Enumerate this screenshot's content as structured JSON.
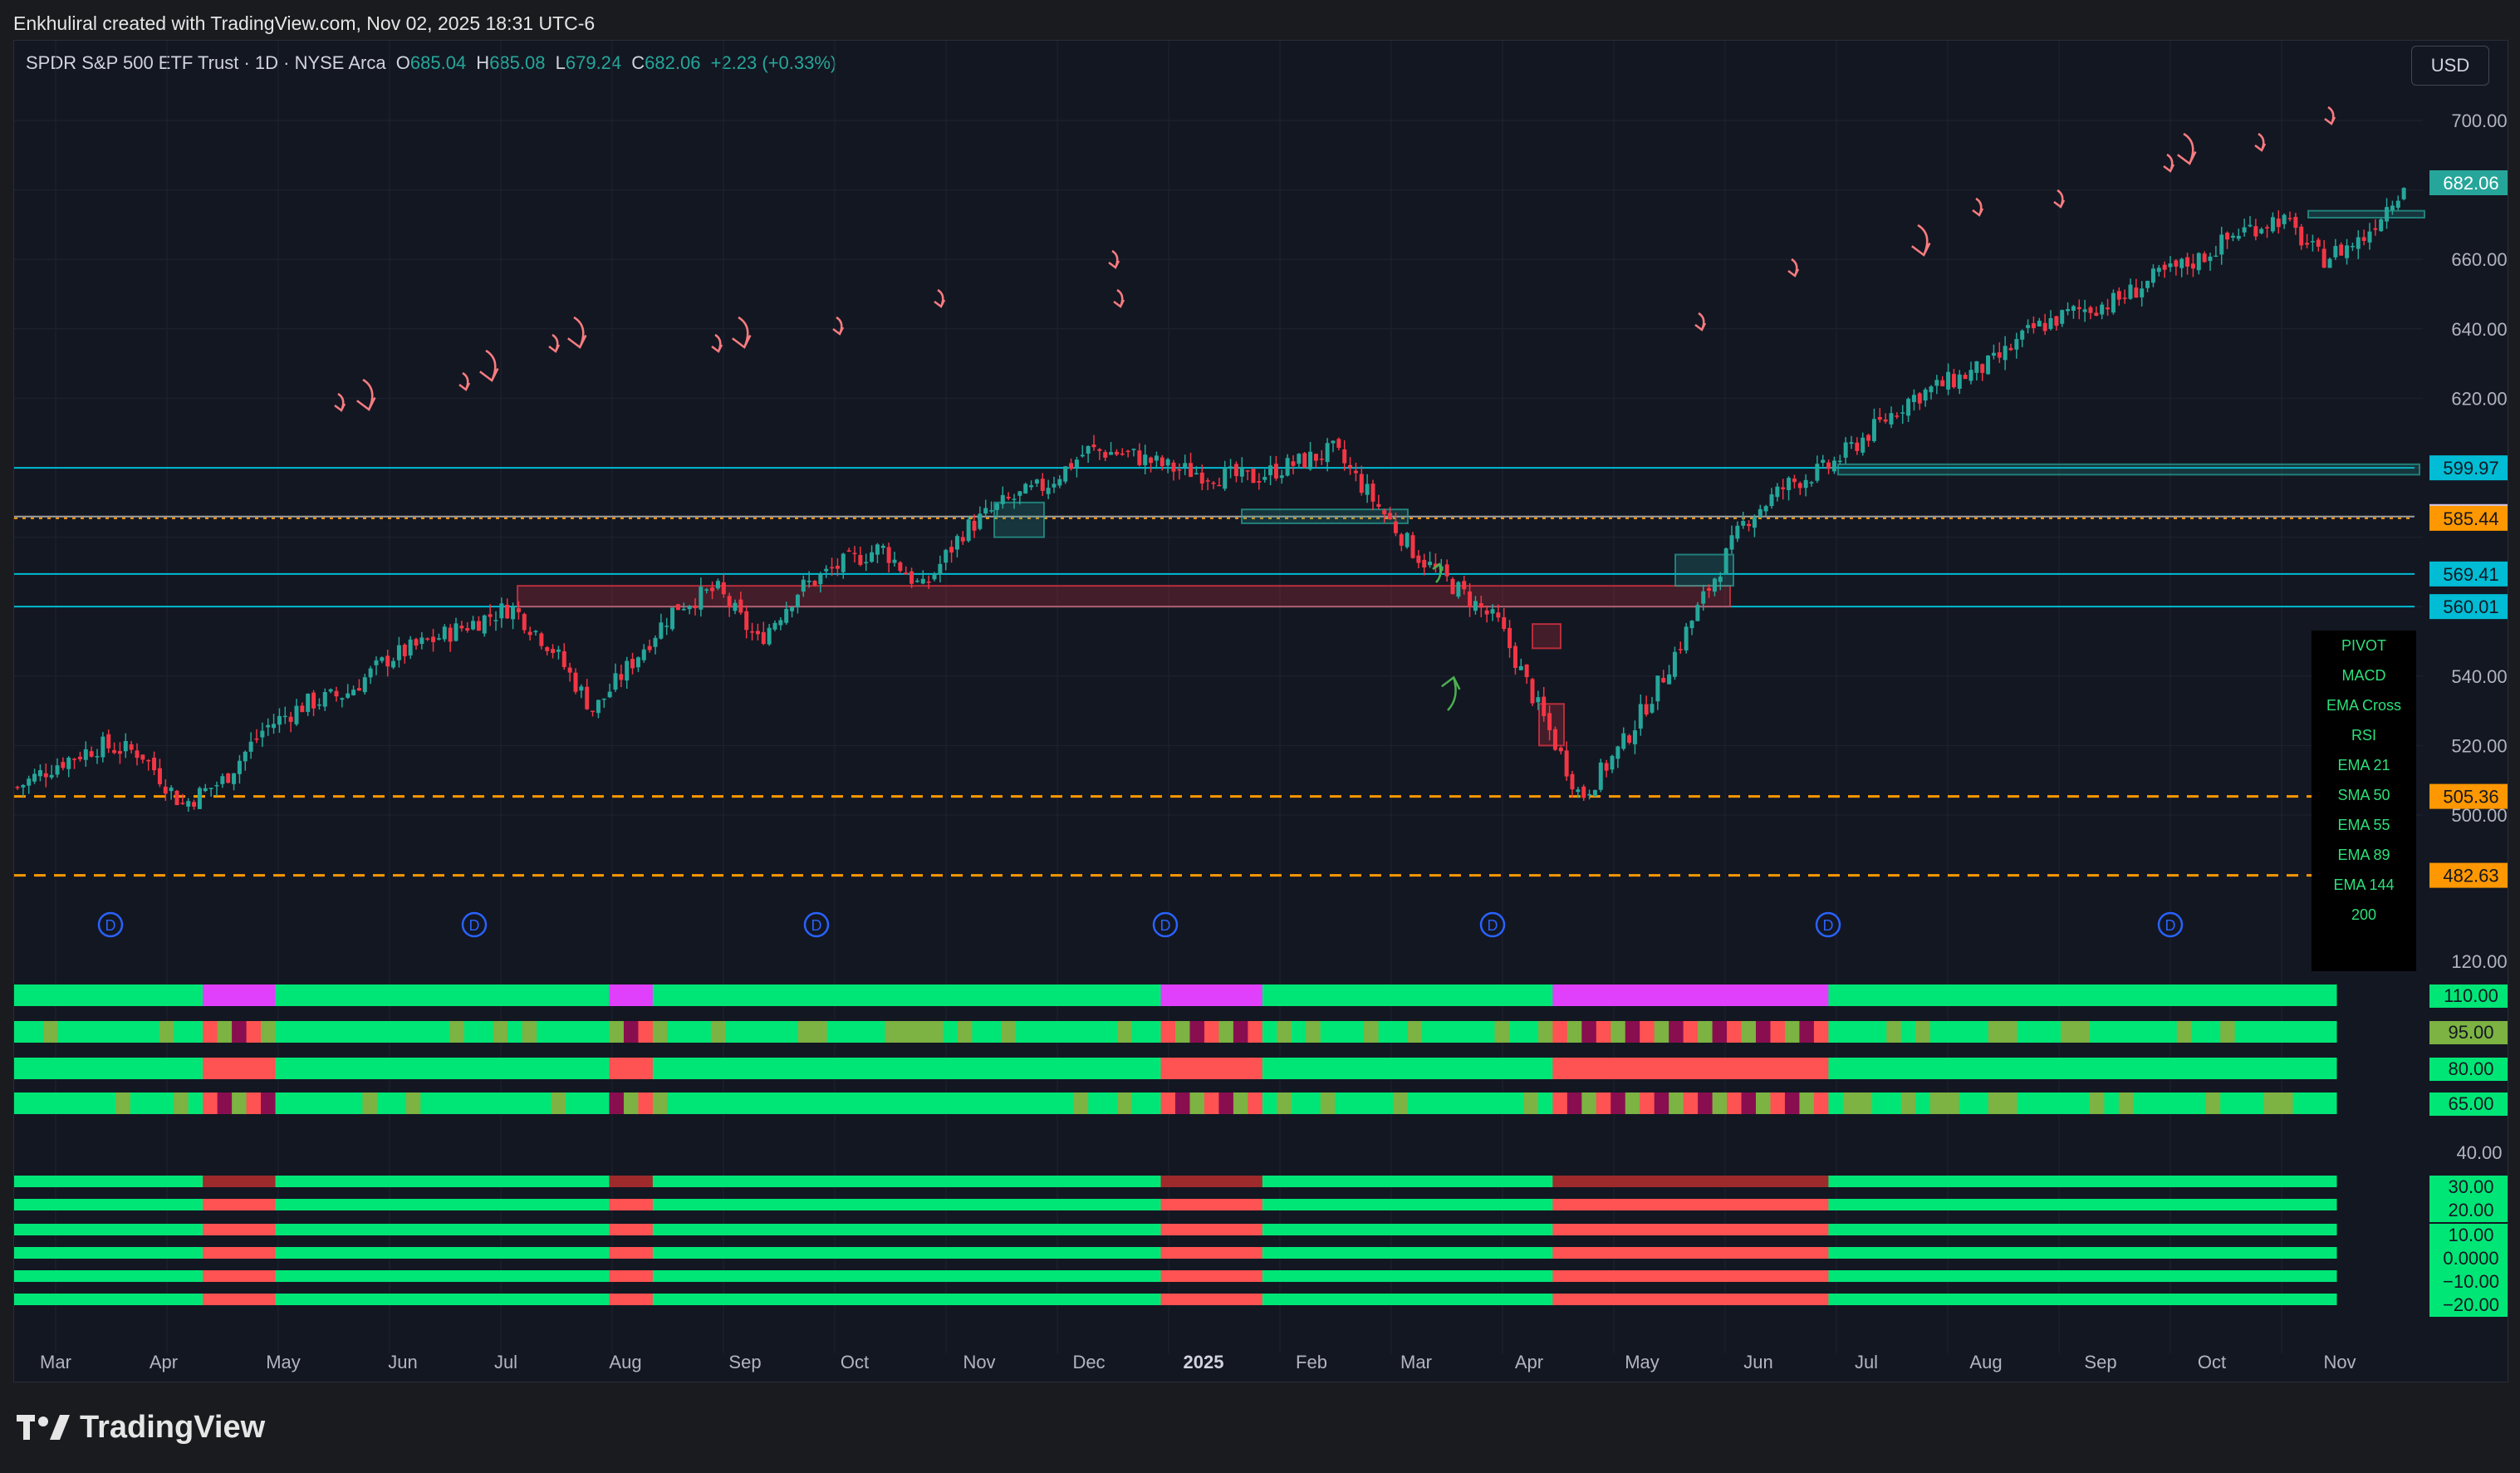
{
  "attribution": "Enkhuliral created with TradingView.com, Nov 02, 2025 18:31 UTC-6",
  "symbol": {
    "name": "SPDR S&P 500 ETF Trust · 1D · NYSE Arca",
    "open_label": "O",
    "open": "685.04",
    "high_label": "H",
    "high": "685.08",
    "low_label": "L",
    "low": "679.24",
    "close_label": "C",
    "close": "682.06",
    "change": "+2.23 (+0.33%)"
  },
  "currency_button": "USD",
  "price_axis": {
    "ticks": [
      "700.00",
      "660.00",
      "640.00",
      "620.00",
      "540.00",
      "520.00",
      "500.00"
    ],
    "last_price": "682.06",
    "levels": [
      {
        "label": "599.97",
        "color": "#00bcd4"
      },
      {
        "label": "585.94",
        "color": "#d1c4e9"
      },
      {
        "label": "585.44",
        "color": "#ff9800"
      },
      {
        "label": "569.41",
        "color": "#00bcd4"
      },
      {
        "label": "560.01",
        "color": "#00bcd4"
      },
      {
        "label": "505.36",
        "color": "#ff9800"
      },
      {
        "label": "482.63",
        "color": "#ff9800"
      }
    ]
  },
  "indicator_legend": [
    "PIVOT",
    "MACD",
    "EMA Cross",
    "RSI",
    "EMA 21",
    "SMA 50",
    "EMA 55",
    "EMA 89",
    "EMA 144",
    "200"
  ],
  "oscillator_axis": {
    "ticks": [
      "120.00",
      "40.00"
    ],
    "labels": [
      "110.00",
      "95.00",
      "80.00",
      "65.00",
      "30.00",
      "20.00",
      "10.00",
      "0.0000",
      "−10.00",
      "−20.00"
    ]
  },
  "time_axis": [
    "Mar",
    "Apr",
    "May",
    "Jun",
    "Jul",
    "Aug",
    "Sep",
    "Oct",
    "Nov",
    "Dec",
    "2025",
    "Feb",
    "Mar",
    "Apr",
    "May",
    "Jun",
    "Jul",
    "Aug",
    "Sep",
    "Oct",
    "Nov"
  ],
  "dividend_marker": "D",
  "brand": "TradingView",
  "colors": {
    "bull": "#26a69a",
    "bear": "#f23645",
    "heat_green": "#00e676",
    "heat_red": "#ff5252",
    "heat_magenta": "#e040fb",
    "heat_darkred": "#880e4f",
    "heat_olive": "#7cb342"
  },
  "chart_data": {
    "type": "candlestick",
    "title": "SPDR S&P 500 ETF Trust · 1D · NYSE Arca",
    "ylim": [
      470,
      710
    ],
    "x": [
      "Mar",
      "Apr",
      "May",
      "Jun",
      "Jul",
      "Aug",
      "Sep",
      "Oct",
      "Nov",
      "Dec",
      "2025",
      "Feb",
      "Mar",
      "Apr",
      "May",
      "Jun",
      "Jul",
      "Aug",
      "Sep",
      "Oct",
      "Nov"
    ],
    "close_path": [
      508,
      515,
      520,
      518,
      503,
      510,
      525,
      532,
      535,
      545,
      550,
      555,
      560,
      548,
      530,
      545,
      560,
      565,
      550,
      565,
      572,
      577,
      565,
      582,
      590,
      595,
      605,
      604,
      600,
      598,
      597,
      601,
      605,
      590,
      575,
      565,
      555,
      530,
      505,
      520,
      540,
      563,
      585,
      595,
      600,
      610,
      620,
      625,
      630,
      640,
      645,
      648,
      655,
      660,
      668,
      672,
      660,
      666,
      682
    ],
    "horizontal_levels": [
      599.97,
      585.94,
      585.44,
      569.41,
      560.01,
      505.36,
      482.63
    ]
  }
}
